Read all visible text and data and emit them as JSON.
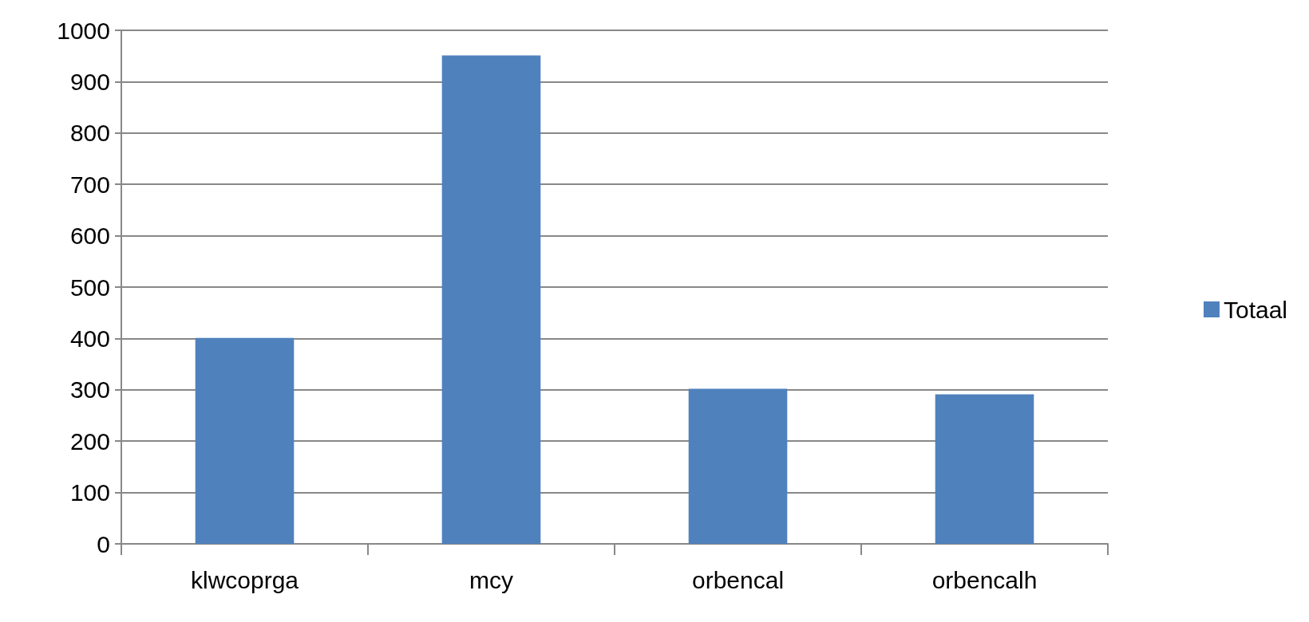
{
  "chart_data": {
    "type": "bar",
    "categories": [
      "klwcoprga",
      "mcy",
      "orbencal",
      "orbencalh"
    ],
    "series": [
      {
        "name": "Totaal",
        "color": "#4f81bd",
        "values": [
          401,
          951,
          302,
          291
        ]
      }
    ],
    "ylim": [
      0,
      1000
    ],
    "yticks": [
      0,
      100,
      200,
      300,
      400,
      500,
      600,
      700,
      800,
      900,
      1000
    ],
    "grid": "y",
    "legend": "right"
  }
}
